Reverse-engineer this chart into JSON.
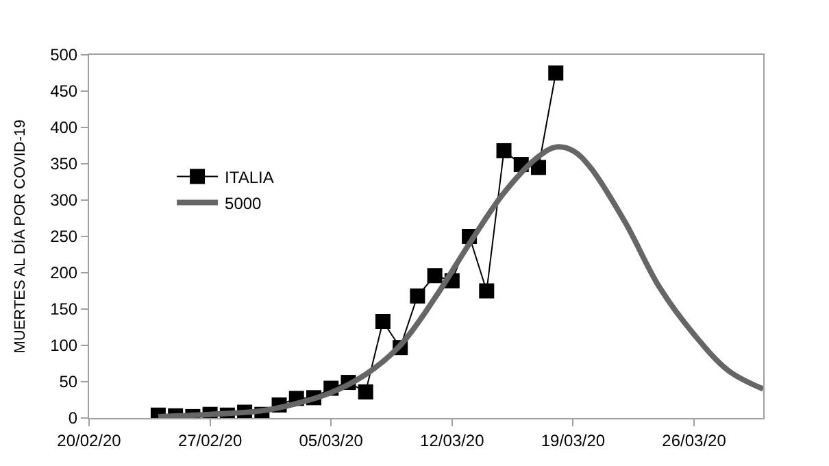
{
  "chart_data": {
    "type": "line",
    "ylabel": "MUERTES AL DÍA POR COVID-19",
    "xlim": [
      "--02-20",
      "--03-30"
    ],
    "xticks": [
      {
        "value": "--02-20",
        "label": "20/02/20"
      },
      {
        "value": "--02-27",
        "label": "27/02/20"
      },
      {
        "value": "--03-05",
        "label": "05/03/20"
      },
      {
        "value": "--03-12",
        "label": "12/03/20"
      },
      {
        "value": "--03-19",
        "label": "19/03/20"
      },
      {
        "value": "--03-26",
        "label": "26/03/20"
      }
    ],
    "ylim": [
      0,
      500
    ],
    "yticks": [
      0,
      50,
      100,
      150,
      200,
      250,
      300,
      350,
      400,
      450,
      500
    ],
    "legend": "left",
    "series": [
      {
        "name": "ITALIA",
        "color": "#000000",
        "marker": "square",
        "x": [
          "--02-24",
          "--02-25",
          "--02-26",
          "--02-27",
          "--02-28",
          "--02-29",
          "--03-01",
          "--03-02",
          "--03-03",
          "--03-04",
          "--03-05",
          "--03-06",
          "--03-07",
          "--03-08",
          "--03-09",
          "--03-10",
          "--03-11",
          "--03-12",
          "--03-13",
          "--03-14",
          "--03-15",
          "--03-16",
          "--03-17",
          "--03-18"
        ],
        "values": [
          4,
          3,
          2,
          5,
          4,
          8,
          5,
          18,
          27,
          28,
          41,
          49,
          36,
          133,
          97,
          168,
          196,
          189,
          250,
          175,
          368,
          349,
          345,
          475
        ]
      },
      {
        "name": "5000",
        "color": "#666666",
        "marker": "none",
        "x": [
          "--02-24",
          "--02-27",
          "--03-01",
          "--03-03",
          "--03-05",
          "--03-07",
          "--03-09",
          "--03-11",
          "--03-13",
          "--03-15",
          "--03-17",
          "--03-18",
          "--03-19",
          "--03-20",
          "--03-22",
          "--03-24",
          "--03-26",
          "--03-28",
          "--03-30"
        ],
        "values": [
          2,
          5,
          10,
          20,
          35,
          60,
          100,
          165,
          240,
          310,
          360,
          373,
          368,
          345,
          270,
          180,
          115,
          65,
          40
        ]
      }
    ]
  }
}
